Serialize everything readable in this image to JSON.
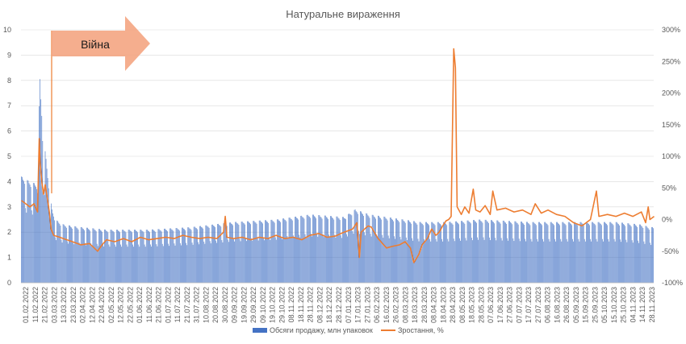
{
  "chart_data": {
    "type": "bar+line",
    "title": "Натуральне вираження",
    "annotation": {
      "text": "Війна",
      "color": "#f4a582"
    },
    "left_axis": {
      "min": 0,
      "max": 10,
      "ticks": [
        "0",
        "1",
        "2",
        "3",
        "4",
        "5",
        "6",
        "7",
        "8",
        "9",
        "10"
      ]
    },
    "right_axis": {
      "min": -100,
      "max": 300,
      "ticks": [
        "-100%",
        "-50%",
        "0%",
        "50%",
        "100%",
        "150%",
        "200%",
        "250%",
        "300%"
      ]
    },
    "x_tick_labels": [
      "01.02.2022",
      "11.02.2022",
      "21.02.2022",
      "03.03.2022",
      "13.03.2022",
      "23.03.2022",
      "02.04.2022",
      "12.04.2022",
      "22.04.2022",
      "02.05.2022",
      "12.05.2022",
      "22.05.2022",
      "01.06.2022",
      "11.06.2022",
      "21.06.2022",
      "01.07.2022",
      "11.07.2022",
      "21.07.2022",
      "31.07.2022",
      "10.08.2022",
      "20.08.2022",
      "30.08.2022",
      "09.09.2022",
      "19.09.2022",
      "29.09.2022",
      "09.10.2022",
      "19.10.2022",
      "29.10.2022",
      "08.11.2022",
      "18.11.2022",
      "28.11.2022",
      "08.12.2022",
      "18.12.2022",
      "28.12.2022",
      "07.01.2023",
      "17.01.2023",
      "27.01.2023",
      "06.02.2023",
      "16.02.2023",
      "26.02.2023",
      "08.03.2023",
      "18.03.2023",
      "28.03.2023",
      "08.04.2023",
      "18.04.2023",
      "28.04.2023",
      "08.05.2023",
      "18.05.2023",
      "28.05.2023",
      "07.06.2023",
      "17.06.2023",
      "27.06.2023",
      "07.07.2023",
      "17.07.2023",
      "27.07.2023",
      "06.08.2023",
      "16.08.2023",
      "26.08.2023",
      "05.09.2023",
      "15.09.2023",
      "25.09.2023",
      "05.10.2023",
      "15.10.2023",
      "25.10.2023",
      "04.11.2023",
      "14.11.2023",
      "28.11.2023"
    ],
    "series": [
      {
        "name": "Обсяги продажу, млн упаковок",
        "axis": "left",
        "kind": "bar",
        "color": "#4472c4",
        "weekly_pattern_note": "",
        "anchors": [
          [
            0,
            4.2
          ],
          [
            10,
            4.0
          ],
          [
            18,
            3.9
          ],
          [
            22,
            8.0
          ],
          [
            24,
            6.8
          ],
          [
            26,
            5.0
          ],
          [
            28,
            5.2
          ],
          [
            30,
            4.6
          ],
          [
            33,
            3.6
          ],
          [
            36,
            2.9
          ],
          [
            40,
            2.5
          ],
          [
            50,
            2.3
          ],
          [
            70,
            2.2
          ],
          [
            100,
            2.1
          ],
          [
            150,
            2.1
          ],
          [
            200,
            2.2
          ],
          [
            250,
            2.4
          ],
          [
            300,
            2.5
          ],
          [
            340,
            2.7
          ],
          [
            380,
            2.6
          ],
          [
            393,
            2.9
          ],
          [
            410,
            2.7
          ],
          [
            430,
            2.6
          ],
          [
            450,
            2.5
          ],
          [
            470,
            2.4
          ],
          [
            500,
            2.4
          ],
          [
            540,
            2.5
          ],
          [
            600,
            2.4
          ],
          [
            660,
            2.4
          ],
          [
            700,
            2.4
          ],
          [
            730,
            2.3
          ],
          [
            740,
            2.2
          ]
        ],
        "weekday_factors": [
          1.0,
          1.0,
          0.98,
          0.97,
          0.95,
          0.72,
          0.68
        ]
      },
      {
        "name": "Зростання, %",
        "axis": "right",
        "kind": "line",
        "color": "#ed7d31",
        "points": [
          [
            0,
            30
          ],
          [
            5,
            25
          ],
          [
            10,
            20
          ],
          [
            15,
            25
          ],
          [
            19,
            12
          ],
          [
            21,
            128
          ],
          [
            22,
            90
          ],
          [
            24,
            60
          ],
          [
            26,
            40
          ],
          [
            28,
            55
          ],
          [
            31,
            30
          ],
          [
            33,
            10
          ],
          [
            35,
            -15
          ],
          [
            38,
            -25
          ],
          [
            45,
            -28
          ],
          [
            60,
            -35
          ],
          [
            70,
            -40
          ],
          [
            80,
            -38
          ],
          [
            90,
            -50
          ],
          [
            95,
            -40
          ],
          [
            100,
            -32
          ],
          [
            110,
            -35
          ],
          [
            120,
            -30
          ],
          [
            130,
            -35
          ],
          [
            140,
            -28
          ],
          [
            150,
            -32
          ],
          [
            160,
            -30
          ],
          [
            170,
            -28
          ],
          [
            180,
            -30
          ],
          [
            190,
            -25
          ],
          [
            200,
            -28
          ],
          [
            210,
            -30
          ],
          [
            220,
            -28
          ],
          [
            230,
            -30
          ],
          [
            238,
            -20
          ],
          [
            240,
            5
          ],
          [
            242,
            -28
          ],
          [
            250,
            -30
          ],
          [
            260,
            -28
          ],
          [
            270,
            -32
          ],
          [
            280,
            -28
          ],
          [
            290,
            -30
          ],
          [
            300,
            -25
          ],
          [
            310,
            -30
          ],
          [
            320,
            -28
          ],
          [
            330,
            -32
          ],
          [
            340,
            -25
          ],
          [
            350,
            -22
          ],
          [
            360,
            -28
          ],
          [
            370,
            -26
          ],
          [
            380,
            -20
          ],
          [
            390,
            -15
          ],
          [
            395,
            -5
          ],
          [
            398,
            -60
          ],
          [
            400,
            -20
          ],
          [
            408,
            -10
          ],
          [
            412,
            -12
          ],
          [
            420,
            -30
          ],
          [
            425,
            -38
          ],
          [
            430,
            -45
          ],
          [
            438,
            -42
          ],
          [
            445,
            -40
          ],
          [
            452,
            -35
          ],
          [
            458,
            -45
          ],
          [
            462,
            -68
          ],
          [
            468,
            -55
          ],
          [
            472,
            -40
          ],
          [
            478,
            -30
          ],
          [
            483,
            -15
          ],
          [
            488,
            -25
          ],
          [
            492,
            -20
          ],
          [
            496,
            -10
          ],
          [
            500,
            -2
          ],
          [
            503,
            0
          ],
          [
            506,
            5
          ],
          [
            509,
            270
          ],
          [
            511,
            240
          ],
          [
            513,
            20
          ],
          [
            518,
            8
          ],
          [
            522,
            20
          ],
          [
            527,
            10
          ],
          [
            532,
            48
          ],
          [
            535,
            15
          ],
          [
            540,
            12
          ],
          [
            546,
            22
          ],
          [
            552,
            8
          ],
          [
            555,
            45
          ],
          [
            560,
            15
          ],
          [
            570,
            18
          ],
          [
            580,
            12
          ],
          [
            590,
            15
          ],
          [
            600,
            8
          ],
          [
            605,
            25
          ],
          [
            612,
            10
          ],
          [
            620,
            15
          ],
          [
            630,
            8
          ],
          [
            640,
            5
          ],
          [
            650,
            -5
          ],
          [
            660,
            -10
          ],
          [
            670,
            0
          ],
          [
            677,
            45
          ],
          [
            680,
            5
          ],
          [
            690,
            8
          ],
          [
            700,
            5
          ],
          [
            710,
            10
          ],
          [
            720,
            5
          ],
          [
            730,
            12
          ],
          [
            735,
            -5
          ],
          [
            738,
            20
          ],
          [
            740,
            0
          ],
          [
            745,
            5
          ]
        ]
      }
    ],
    "legend": {
      "position": "bottom",
      "entries": [
        "Обсяги продажу, млн упаковок",
        "Зростання, %"
      ]
    },
    "grid": "horizontal",
    "colors": {
      "gridline": "#d9d9d9",
      "axis_text": "#595959"
    }
  }
}
